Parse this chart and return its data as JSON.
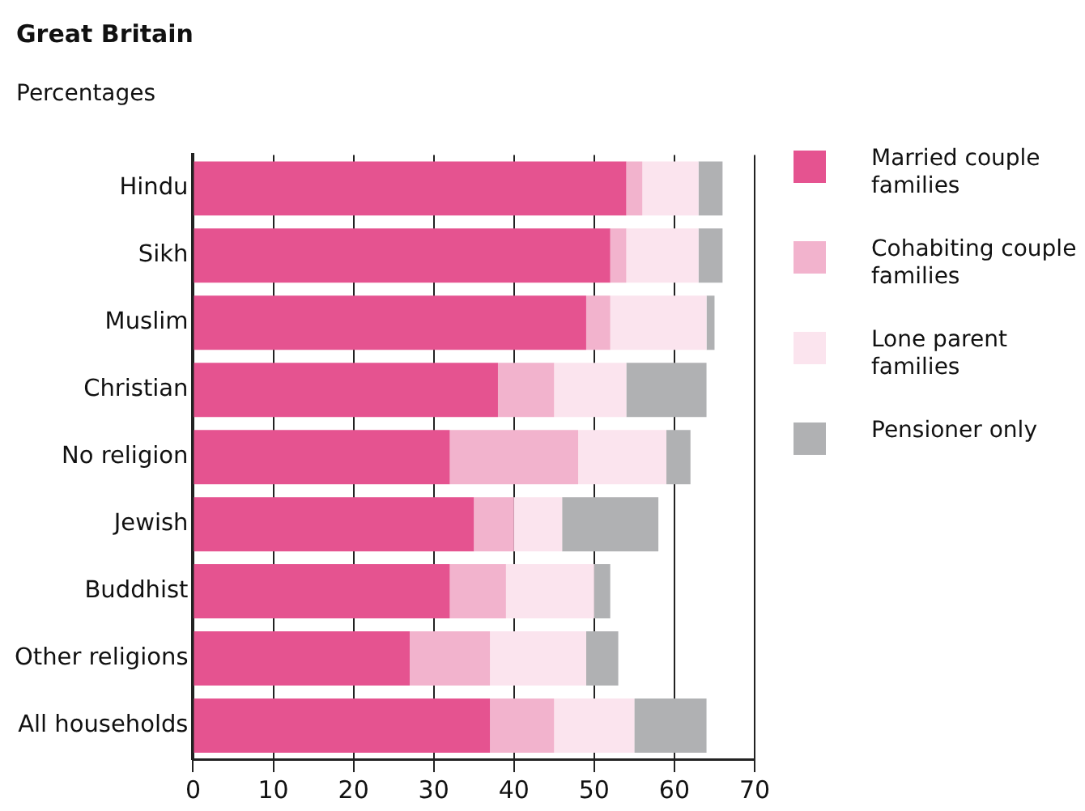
{
  "chart_data": {
    "type": "bar",
    "orientation": "horizontal",
    "stacked": true,
    "title": "Great Britain",
    "subtitle": "Percentages",
    "categories": [
      "Hindu",
      "Sikh",
      "Muslim",
      "Christian",
      "No religion",
      "Jewish",
      "Buddhist",
      "Other religions",
      "All households"
    ],
    "series": [
      {
        "name": "Married couple families",
        "color": "#e55390",
        "values": [
          54,
          52,
          49,
          38,
          32,
          35,
          32,
          27,
          37
        ]
      },
      {
        "name": "Cohabiting couple families",
        "color": "#f2b3cd",
        "values": [
          2,
          2,
          3,
          7,
          16,
          5,
          7,
          10,
          8
        ]
      },
      {
        "name": "Lone parent families",
        "color": "#fbe4ee",
        "values": [
          7,
          9,
          12,
          9,
          11,
          6,
          11,
          12,
          10
        ]
      },
      {
        "name": "Pensioner only",
        "color": "#b0b1b3",
        "values": [
          3,
          3,
          1,
          10,
          3,
          12,
          2,
          4,
          9
        ]
      }
    ],
    "xlim": [
      0,
      70
    ],
    "xticks": [
      0,
      10,
      20,
      30,
      40,
      50,
      60,
      70
    ],
    "grid": "x",
    "legend": "right"
  }
}
